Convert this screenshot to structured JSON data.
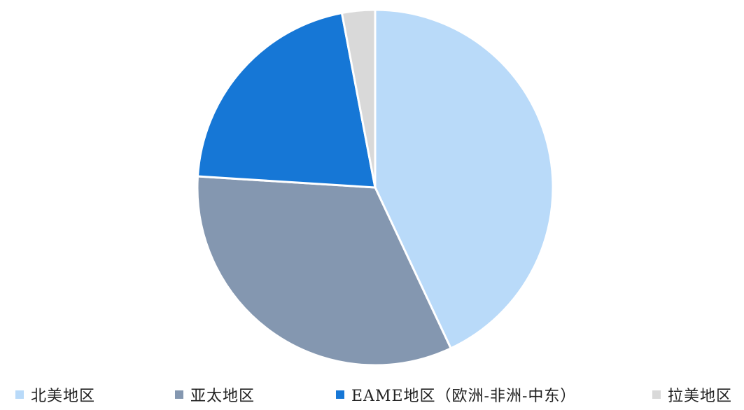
{
  "chart_data": {
    "type": "pie",
    "title": "",
    "categories": [
      "北美地区",
      "亚太地区",
      "EAME地区（欧洲-非洲-中东）",
      "拉美地区"
    ],
    "values": [
      43,
      33,
      21,
      3
    ],
    "unit": "%",
    "start_angle_deg": 0,
    "direction": "clockwise",
    "legend_position": "bottom",
    "colors": [
      "#b9daf9",
      "#8497b0",
      "#1677d6",
      "#d9d9d9"
    ],
    "slice_border_color": "#ffffff"
  }
}
